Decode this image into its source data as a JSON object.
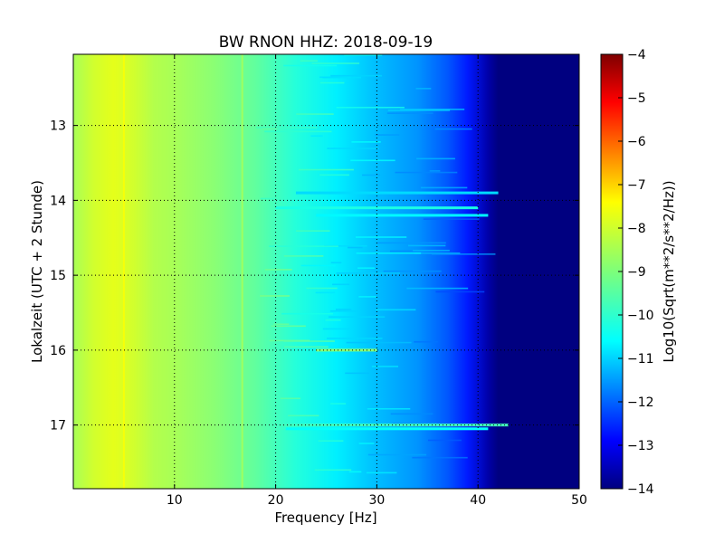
{
  "chart_data": {
    "type": "heatmap",
    "title": "BW RNON HHZ: 2018-09-19",
    "xlabel": "Frequency [Hz]",
    "ylabel": "Lokalzeit (UTC + 2 Stunde)",
    "xlim": [
      0,
      50
    ],
    "ylim": [
      17.85,
      12.05
    ],
    "x_ticks": [
      10,
      20,
      30,
      40,
      50
    ],
    "y_ticks": [
      13,
      14,
      15,
      16,
      17
    ],
    "grid": true,
    "colormap": "jet",
    "colorbar": {
      "label": "Log10(Sqrt(m**2/s**2/Hz))",
      "range": [
        -14,
        -4
      ],
      "ticks": [
        -4,
        -5,
        -6,
        -7,
        -8,
        -9,
        -10,
        -11,
        -12,
        -13,
        -14
      ]
    },
    "spectrum_profile": [
      {
        "f": 0,
        "v": -8.6
      },
      {
        "f": 2,
        "v": -8.2
      },
      {
        "f": 4,
        "v": -8.0
      },
      {
        "f": 6,
        "v": -8.2
      },
      {
        "f": 8,
        "v": -8.5
      },
      {
        "f": 10,
        "v": -8.6
      },
      {
        "f": 14,
        "v": -8.9
      },
      {
        "f": 18,
        "v": -9.3
      },
      {
        "f": 22,
        "v": -9.9
      },
      {
        "f": 26,
        "v": -10.4
      },
      {
        "f": 30,
        "v": -10.9
      },
      {
        "f": 34,
        "v": -11.3
      },
      {
        "f": 37,
        "v": -11.9
      },
      {
        "f": 39,
        "v": -12.5
      },
      {
        "f": 41,
        "v": -13.6
      },
      {
        "f": 42,
        "v": -14.0
      },
      {
        "f": 50,
        "v": -14.0
      }
    ],
    "narrow_lines": [
      {
        "f": 5.0,
        "v": -7.8
      },
      {
        "f": 16.7,
        "v": -8.6
      }
    ],
    "events": [
      {
        "t": 14.1,
        "f_start": 20,
        "f_end": 40,
        "v": -10.0
      },
      {
        "t": 14.2,
        "f_start": 24,
        "f_end": 41,
        "v": -10.3
      },
      {
        "t": 13.9,
        "f_start": 22,
        "f_end": 42,
        "v": -10.6
      },
      {
        "t": 16.0,
        "f_start": 24,
        "f_end": 30,
        "v": -8.9
      },
      {
        "t": 17.0,
        "f_start": 20,
        "f_end": 43,
        "v": -9.6
      },
      {
        "t": 17.05,
        "f_start": 21,
        "f_end": 41,
        "v": -10.2
      }
    ]
  }
}
